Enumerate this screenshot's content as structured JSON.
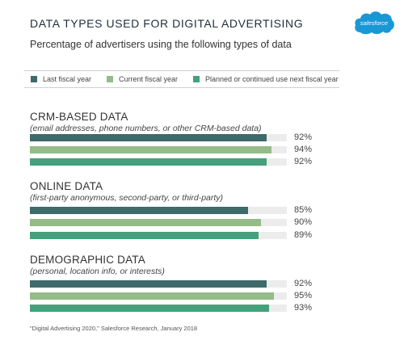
{
  "title": "DATA TYPES USED FOR DIGITAL ADVERTISING",
  "subtitle": "Percentage of advertisers using the following types of data",
  "logo_text": "salesforce",
  "footer": "\"Digital Advertising 2020,\" Salesforce Research, January 2018",
  "colors": {
    "last": "#3e6a6a",
    "current": "#95bb88",
    "planned": "#45a07c",
    "track": "#ececec",
    "logo": "#1a98d5"
  },
  "chart_data": {
    "type": "bar",
    "orientation": "horizontal",
    "xlim": [
      0,
      100
    ],
    "unit": "%",
    "legend": [
      "Last fiscal year",
      "Current fiscal year",
      "Planned or continued use next fiscal year"
    ],
    "groups": [
      {
        "title": "CRM-BASED DATA",
        "subtitle": "(email addresses, phone numbers, or other CRM-based data)",
        "values": [
          92,
          94,
          92
        ],
        "labels": [
          "92%",
          "94%",
          "92%"
        ]
      },
      {
        "title": "ONLINE DATA",
        "subtitle": "(first-party anonymous, second-party, or third-party)",
        "values": [
          85,
          90,
          89
        ],
        "labels": [
          "85%",
          "90%",
          "89%"
        ]
      },
      {
        "title": "DEMOGRAPHIC DATA",
        "subtitle": "(personal, location info, or interests)",
        "values": [
          92,
          95,
          93
        ],
        "labels": [
          "92%",
          "95%",
          "93%"
        ]
      }
    ]
  }
}
